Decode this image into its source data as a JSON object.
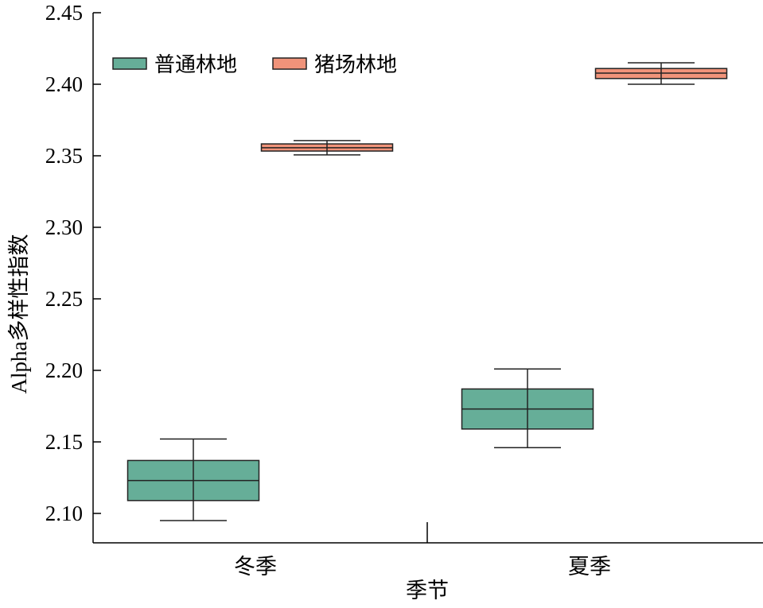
{
  "chart_data": {
    "type": "box",
    "title": "",
    "xlabel": "季节",
    "ylabel": "Alpha多样性指数",
    "categories": [
      "冬季",
      "夏季"
    ],
    "ylim": [
      2.1,
      2.45
    ],
    "yticks": [
      "2.10",
      "2.15",
      "2.20",
      "2.25",
      "2.30",
      "2.35",
      "2.40",
      "2.45"
    ],
    "grid": false,
    "legend_position": "top-left",
    "series": [
      {
        "name": "普通林地",
        "color": "#66AE98",
        "boxes": [
          {
            "whislo": 2.095,
            "q1": 2.109,
            "med": 2.123,
            "q3": 2.137,
            "whishi": 2.152
          },
          {
            "whislo": 2.146,
            "q1": 2.159,
            "med": 2.173,
            "q3": 2.187,
            "whishi": 2.201
          }
        ]
      },
      {
        "name": "猪场林地",
        "color": "#F0937A",
        "boxes": [
          {
            "whislo": 2.3506,
            "q1": 2.3533,
            "med": 2.3556,
            "q3": 2.3583,
            "whishi": 2.3606
          },
          {
            "whislo": 2.4,
            "q1": 2.404,
            "med": 2.4078,
            "q3": 2.411,
            "whishi": 2.415
          }
        ]
      }
    ]
  }
}
